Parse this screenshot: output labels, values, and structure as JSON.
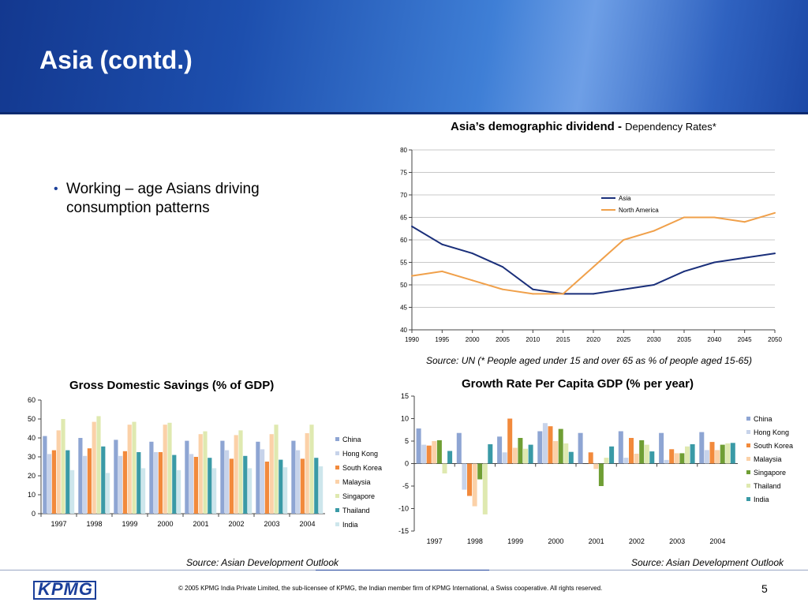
{
  "slide": {
    "title": "Asia (contd.)",
    "bullet": "Working – age Asians driving consumption patterns",
    "copyright": "© 2005 KPMG India Private Limited, the sub-licensee of KPMG, the Indian member firm of KPMG International, a Swiss cooperative. All rights reserved.",
    "page_number": "5",
    "logo_text": "KPMG"
  },
  "chart_data": [
    {
      "id": "dependency",
      "type": "line",
      "title": "Asia’s demographic dividend - ",
      "subtitle": "Dependency Rates*",
      "source": "Source: UN (* People aged under 15 and over 65 as % of people aged 15-65)",
      "x": [
        "1990",
        "1995",
        "2000",
        "2005",
        "2010",
        "2015",
        "2020",
        "2025",
        "2030",
        "2035",
        "2040",
        "2045",
        "2050"
      ],
      "ylim": [
        40,
        80
      ],
      "yticks": [
        40,
        45,
        50,
        55,
        60,
        65,
        70,
        75,
        80
      ],
      "grid": true,
      "legend": "top-right",
      "series": [
        {
          "name": "Asia",
          "color": "#1a2f7a",
          "values": [
            63,
            59,
            57,
            54,
            49,
            48,
            48,
            49,
            50,
            53,
            55,
            56,
            57
          ]
        },
        {
          "name": "North America",
          "color": "#f0a04a",
          "values": [
            52,
            53,
            51,
            49,
            48,
            48,
            54,
            60,
            62,
            65,
            65,
            64,
            66
          ]
        }
      ]
    },
    {
      "id": "savings",
      "type": "bar",
      "title": "Gross Domestic Savings (% of GDP)",
      "source": "Source: Asian Development Outlook",
      "categories": [
        "1997",
        "1998",
        "1999",
        "2000",
        "2001",
        "2002",
        "2003",
        "2004"
      ],
      "ylim": [
        0,
        60
      ],
      "yticks": [
        0,
        10,
        20,
        30,
        40,
        50,
        60
      ],
      "grid": false,
      "legend": "right",
      "series": [
        {
          "name": "China",
          "color": "#8ea5d3",
          "values": [
            41,
            40,
            39,
            38,
            38.5,
            38.5,
            38,
            38.5
          ]
        },
        {
          "name": "Hong Kong",
          "color": "#c7d3ea",
          "values": [
            31.5,
            30.5,
            30.5,
            32.5,
            31.5,
            33.5,
            34,
            33.5
          ]
        },
        {
          "name": "South Korea",
          "color": "#f28a3c",
          "values": [
            33.5,
            34.5,
            33,
            32.5,
            30,
            29,
            27.5,
            29
          ]
        },
        {
          "name": "Malaysia",
          "color": "#fbd1a8",
          "values": [
            44,
            48.5,
            47,
            47,
            42,
            41.5,
            42,
            42.5
          ]
        },
        {
          "name": "Singapore",
          "color": "#dfe9b0",
          "values": [
            50,
            51.5,
            48.5,
            48,
            43.5,
            44,
            47,
            47
          ]
        },
        {
          "name": "Thailand",
          "color": "#3a9aa6",
          "values": [
            33.5,
            35.5,
            32.5,
            31,
            29.5,
            30.5,
            28.5,
            29.5
          ]
        },
        {
          "name": "India",
          "color": "#cde6ec",
          "values": [
            23,
            21.5,
            24,
            23,
            24,
            24,
            24.5,
            25
          ]
        }
      ]
    },
    {
      "id": "growth",
      "type": "bar",
      "title": "Growth Rate Per Capita GDP (% per year)",
      "source": "Source: Asian Development Outlook",
      "categories": [
        "1997",
        "1998",
        "1999",
        "2000",
        "2001",
        "2002",
        "2003",
        "2004"
      ],
      "ylim": [
        -15,
        15
      ],
      "yticks": [
        -15,
        -10,
        -5,
        0,
        5,
        10,
        15
      ],
      "grid": false,
      "legend": "right",
      "series": [
        {
          "name": "China",
          "color": "#8ea5d3",
          "values": [
            7.8,
            6.8,
            6,
            7.2,
            6.8,
            7.2,
            6.8,
            7
          ]
        },
        {
          "name": "Hong Kong",
          "color": "#c7d3ea",
          "values": [
            4.2,
            -5.8,
            2.5,
            9,
            0,
            1.3,
            0.8,
            3
          ]
        },
        {
          "name": "South Korea",
          "color": "#f28a3c",
          "values": [
            4,
            -7.2,
            10,
            8.3,
            2.5,
            5.7,
            3.2,
            4.8
          ]
        },
        {
          "name": "Malaysia",
          "color": "#fbd1a8",
          "values": [
            5,
            -9.5,
            3.5,
            5,
            -1.2,
            2.2,
            2.3,
            3
          ]
        },
        {
          "name": "Singapore",
          "color": "#6f9e34",
          "values": [
            5.2,
            -3.5,
            5.7,
            7.7,
            -5,
            5.2,
            2.3,
            4.2
          ]
        },
        {
          "name": "Thailand",
          "color": "#dfe9b0",
          "values": [
            -2.2,
            -11.3,
            3.3,
            4.5,
            1.3,
            4.2,
            3.8,
            4.5
          ]
        },
        {
          "name": "India",
          "color": "#3a9aa6",
          "values": [
            2.8,
            4.3,
            4.2,
            2.6,
            3.8,
            2.7,
            4.3,
            4.6
          ]
        }
      ]
    }
  ]
}
